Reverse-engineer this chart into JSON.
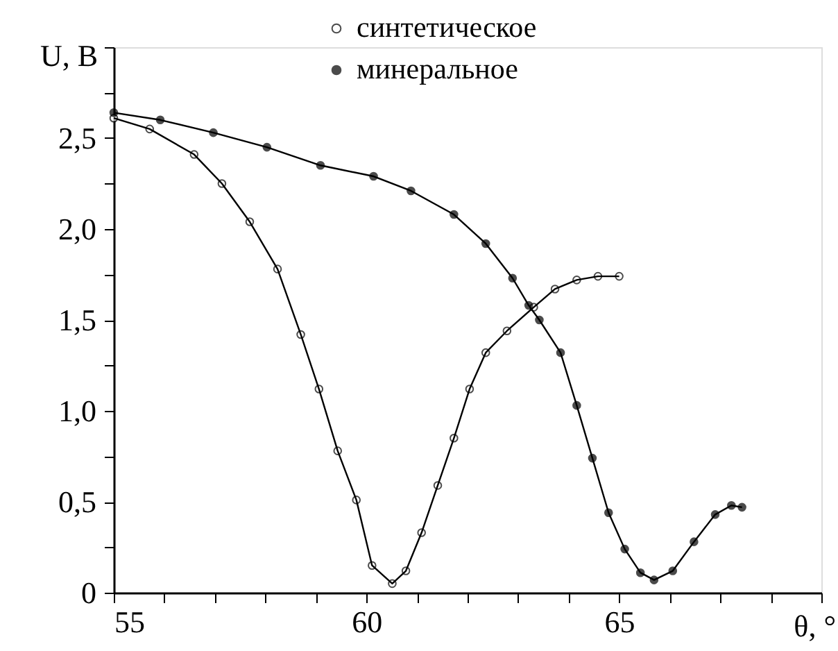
{
  "chart_data": {
    "type": "line",
    "xlabel": "θ, °",
    "ylabel": "U, В",
    "xlim": [
      55,
      69
    ],
    "ylim": [
      0,
      3.0
    ],
    "xticks": [
      55,
      {
        "value": 56,
        "label": null
      },
      {
        "value": 57,
        "label": null
      },
      {
        "value": 58,
        "label": null
      },
      {
        "value": 59,
        "label": null
      },
      60,
      {
        "value": 61,
        "label": null
      },
      {
        "value": 62,
        "label": null
      },
      {
        "value": 63,
        "label": null
      },
      {
        "value": 64,
        "label": null
      },
      65,
      {
        "value": 66,
        "label": null
      },
      {
        "value": 67,
        "label": null
      },
      {
        "value": 68,
        "label": null
      },
      {
        "value": 69,
        "label": null
      }
    ],
    "yticks": [
      0,
      {
        "value": 0.25,
        "label": null
      },
      {
        "value": 0.5,
        "label": "0,5"
      },
      {
        "value": 0.75,
        "label": null
      },
      {
        "value": 1.0,
        "label": "1,0"
      },
      {
        "value": 1.25,
        "label": null
      },
      {
        "value": 1.5,
        "label": "1,5"
      },
      {
        "value": 1.75,
        "label": null
      },
      {
        "value": 2.0,
        "label": "2,0"
      },
      {
        "value": 2.25,
        "label": null
      },
      {
        "value": 2.5,
        "label": "2,5"
      },
      {
        "value": 2.75,
        "label": null
      },
      {
        "value": 3.0,
        "label": null
      }
    ],
    "grid": false,
    "legend": "top",
    "marker": "circle",
    "line_style": "solid",
    "series": [
      {
        "name": "синтетическое",
        "color": "#ffffff",
        "x": [
          55,
          55.71,
          56.59,
          57.14,
          57.69,
          58.24,
          58.7,
          59.06,
          59.43,
          59.8,
          60.11,
          60.51,
          60.78,
          61.09,
          61.41,
          61.73,
          62.04,
          62.36,
          62.78,
          63.31,
          63.73,
          64.16,
          64.58,
          65.0
        ],
        "values": [
          2.61,
          2.55,
          2.41,
          2.25,
          2.04,
          1.78,
          1.42,
          1.12,
          0.78,
          0.51,
          0.15,
          0.05,
          0.12,
          0.33,
          0.59,
          0.85,
          1.12,
          1.32,
          1.44,
          1.57,
          1.67,
          1.72,
          1.74,
          1.74
        ]
      },
      {
        "name": "минеральное",
        "color": "#000000",
        "x": [
          55,
          55.92,
          56.97,
          58.03,
          59.09,
          60.14,
          60.88,
          61.73,
          62.36,
          62.89,
          63.21,
          63.42,
          63.84,
          64.16,
          64.47,
          64.79,
          65.11,
          65.42,
          65.69,
          66.06,
          66.48,
          66.9,
          67.22,
          67.43
        ],
        "values": [
          2.64,
          2.6,
          2.53,
          2.45,
          2.35,
          2.29,
          2.21,
          2.08,
          1.92,
          1.73,
          1.58,
          1.5,
          1.32,
          1.03,
          0.74,
          0.44,
          0.24,
          0.11,
          0.07,
          0.12,
          0.28,
          0.43,
          0.48,
          0.47
        ]
      }
    ]
  }
}
